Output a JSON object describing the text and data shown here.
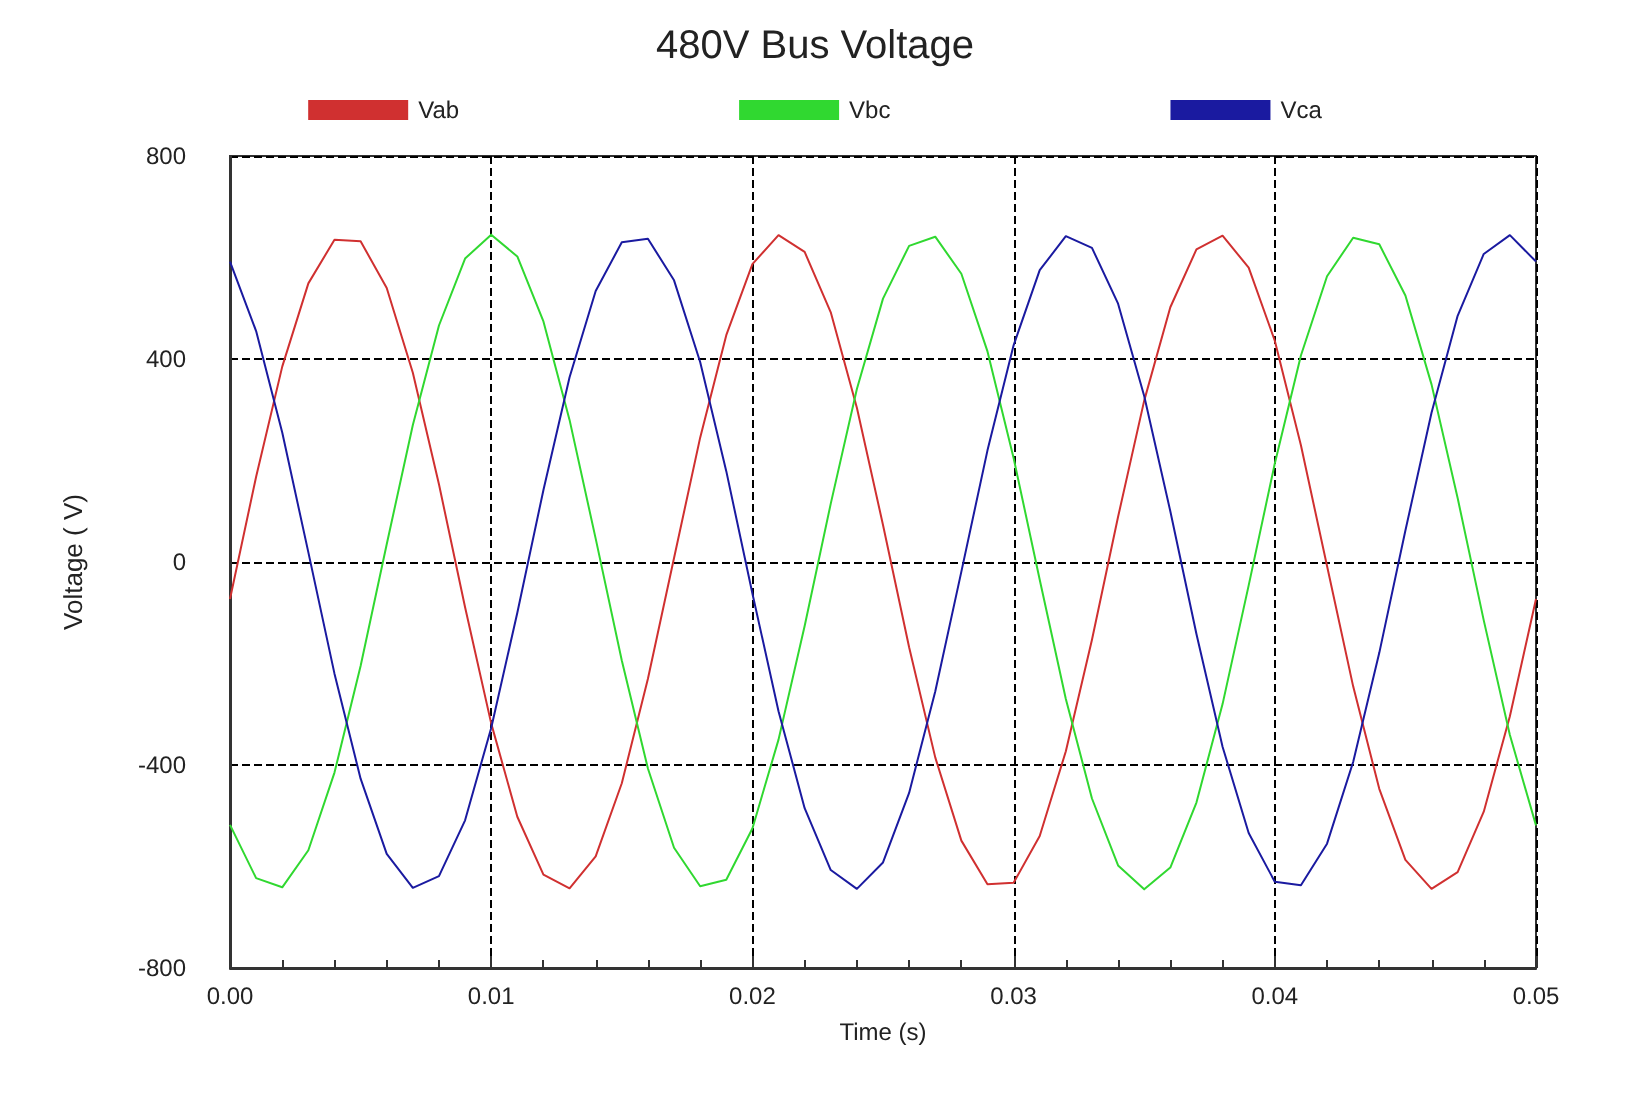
{
  "chart_data": {
    "type": "line",
    "title": "480V Bus Voltage",
    "xlabel": "Time (s)",
    "ylabel": "Voltage ( V)",
    "x": [
      0,
      0.001,
      0.002,
      0.003,
      0.004,
      0.005,
      0.006,
      0.007,
      0.008,
      0.009,
      0.01,
      0.011,
      0.012,
      0.013,
      0.014,
      0.015,
      0.016,
      0.017,
      0.018,
      0.019,
      0.02,
      0.021,
      0.022,
      0.023,
      0.024,
      0.025,
      0.026,
      0.027,
      0.028,
      0.029,
      0.03,
      0.031,
      0.032,
      0.033,
      0.034,
      0.035,
      0.036,
      0.037,
      0.038,
      0.039,
      0.04,
      0.041,
      0.042,
      0.043,
      0.044,
      0.045,
      0.046,
      0.047,
      0.048,
      0.049,
      0.05
    ],
    "series": [
      {
        "name": "Vab",
        "color": "#d03030",
        "values": [
          -73,
          168,
          385,
          549,
          635,
          632,
          540,
          373,
          153,
          -89,
          -318,
          -502,
          -616,
          -643,
          -580,
          -436,
          -230,
          8,
          245,
          447,
          587,
          644,
          611,
          492,
          304,
          73,
          -168,
          -385,
          -549,
          -635,
          -632,
          -540,
          -373,
          -153,
          89,
          318,
          502,
          616,
          643,
          580,
          436,
          230,
          -8,
          -245,
          -447,
          -587,
          -644,
          -611,
          -492,
          -304,
          -73
        ]
      },
      {
        "name": "Vbc",
        "color": "#30d830",
        "values": [
          -518,
          -623,
          -641,
          -568,
          -415,
          -205,
          35,
          270,
          466,
          598,
          645,
          602,
          474,
          280,
          46,
          -194,
          -407,
          -563,
          -639,
          -626,
          -525,
          -350,
          -126,
          115,
          341,
          519,
          623,
          641,
          568,
          415,
          205,
          -35,
          -270,
          -466,
          -598,
          -645,
          -602,
          -474,
          -280,
          -46,
          194,
          407,
          563,
          639,
          626,
          525,
          350,
          126,
          -115,
          -341,
          -519
        ]
      },
      {
        "name": "Vca",
        "color": "#1a1aa0",
        "values": [
          592,
          455,
          255,
          19,
          -220,
          -427,
          -575,
          -642,
          -619,
          -509,
          -327,
          -100,
          142,
          364,
          534,
          630,
          637,
          555,
          394,
          179,
          -62,
          -294,
          -485,
          -607,
          -644,
          -592,
          -455,
          -255,
          -19,
          220,
          427,
          575,
          642,
          619,
          509,
          327,
          100,
          -142,
          -364,
          -534,
          -630,
          -637,
          -555,
          -394,
          -179,
          62,
          294,
          485,
          607,
          644,
          592
        ]
      }
    ],
    "xlim": [
      0,
      0.05
    ],
    "xticks": [
      {
        "value": 0,
        "label": "0.00"
      },
      {
        "value": 0.01,
        "label": "0.01"
      },
      {
        "value": 0.02,
        "label": "0.02"
      },
      {
        "value": 0.03,
        "label": "0.03"
      },
      {
        "value": 0.04,
        "label": "0.04"
      },
      {
        "value": 0.05,
        "label": "0.05"
      }
    ],
    "ylim": [
      -800,
      800
    ],
    "yticks": [
      -800,
      -400,
      0,
      400,
      800
    ],
    "grid": true,
    "legend": "top",
    "marker": "none",
    "line_style": "solid"
  }
}
